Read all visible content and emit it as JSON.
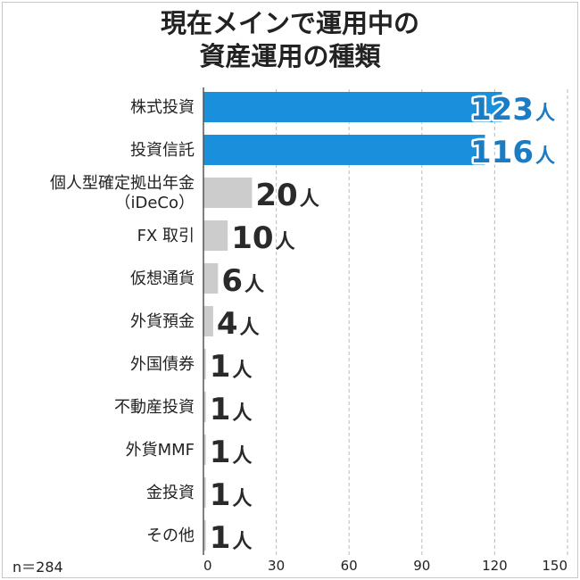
{
  "title_lines": [
    "現在メインで運用中の",
    "資産運用の種類"
  ],
  "sample_note": "n＝284",
  "colors": {
    "highlight_bar": "#1a8fdc",
    "highlight_text": "#1a7cc4",
    "highlight_outline": "#ffffff",
    "normal_bar": "#cccccc",
    "normal_text": "#2a2a2a",
    "grid": "#bbbbbb"
  },
  "chart_data": {
    "type": "bar",
    "orientation": "horizontal",
    "categories": [
      [
        "株式投資"
      ],
      [
        "投資信託"
      ],
      [
        "個人型確定拠出年金",
        "（iDeCo）"
      ],
      [
        "FX 取引"
      ],
      [
        "仮想通貨"
      ],
      [
        "外貨預金"
      ],
      [
        "外国債券"
      ],
      [
        "不動産投資"
      ],
      [
        "外貨MMF"
      ],
      [
        "金投資"
      ],
      [
        "その他"
      ]
    ],
    "values": [
      123,
      116,
      20,
      10,
      6,
      4,
      1,
      1,
      1,
      1,
      1
    ],
    "unit": "人",
    "highlighted": [
      true,
      true,
      false,
      false,
      false,
      false,
      false,
      false,
      false,
      false,
      false
    ],
    "xlim": [
      0,
      150
    ],
    "xticks": [
      0,
      30,
      60,
      90,
      120,
      150
    ],
    "grid": "vertical dashed"
  }
}
